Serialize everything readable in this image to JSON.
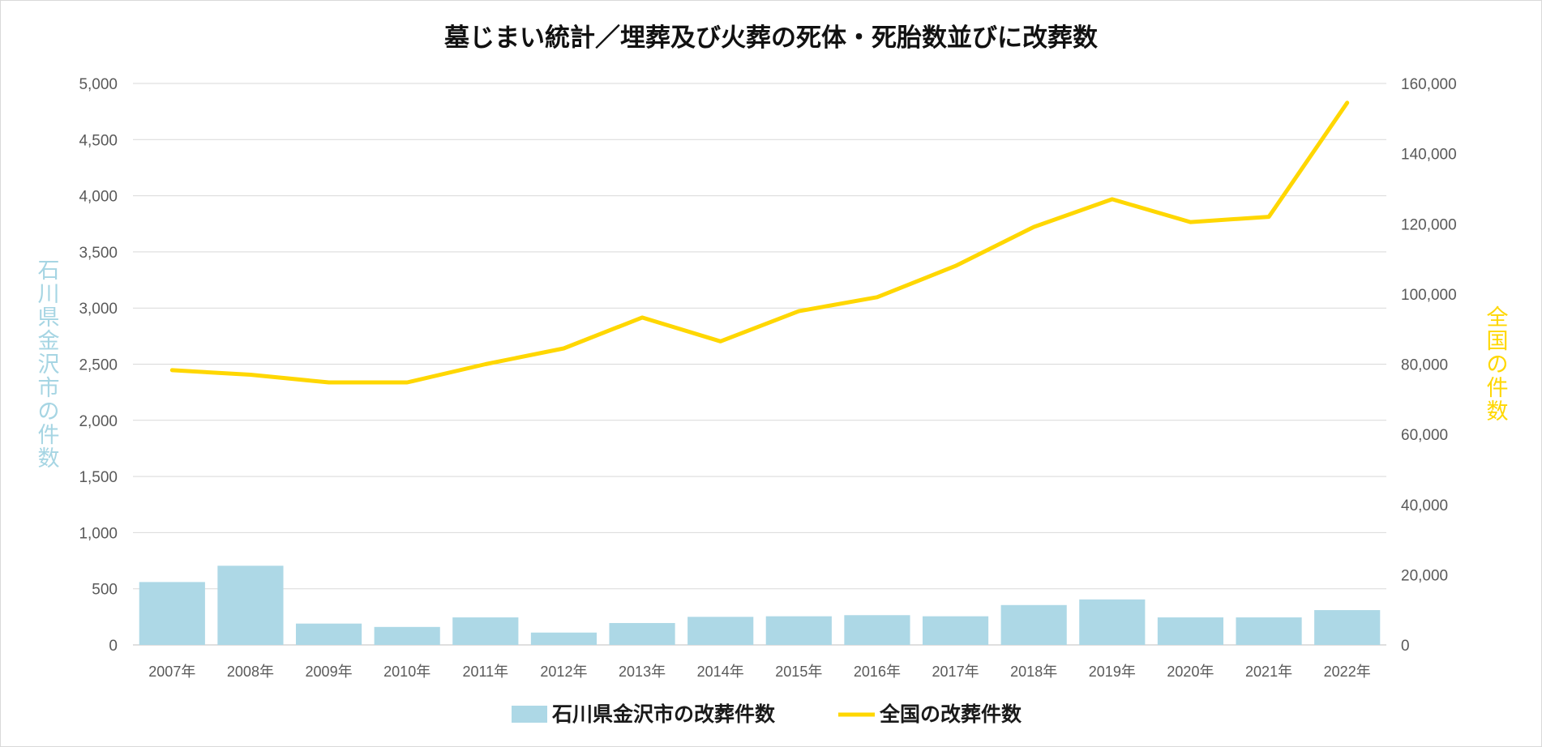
{
  "chart_data": {
    "type": "bar",
    "title": "墓じまい統計／埋葬及び火葬の死体・死胎数並びに改葬数",
    "categories": [
      "2007年",
      "2008年",
      "2009年",
      "2010年",
      "2011年",
      "2012年",
      "2013年",
      "2014年",
      "2015年",
      "2016年",
      "2017年",
      "2018年",
      "2019年",
      "2020年",
      "2021年",
      "2022年"
    ],
    "ylabel": "石川県金沢市の件数",
    "y2label": "全国の件数",
    "ylim": [
      0,
      5000
    ],
    "y2lim": [
      0,
      160000
    ],
    "yticks": [
      "0",
      "500",
      "1,000",
      "1,500",
      "2,000",
      "2,500",
      "3,000",
      "3,500",
      "4,000",
      "4,500",
      "5,000"
    ],
    "y2ticks": [
      "0",
      "20,000",
      "40,000",
      "60,000",
      "80,000",
      "100,000",
      "120,000",
      "140,000",
      "160,000"
    ],
    "grid": true,
    "legend_position": "bottom",
    "series": [
      {
        "name": "石川県金沢市の改葬件数",
        "type": "bar",
        "axis": "left",
        "color": "#add8e6",
        "values": [
          560,
          705,
          190,
          160,
          245,
          110,
          195,
          250,
          255,
          265,
          255,
          355,
          405,
          245,
          245,
          310
        ]
      },
      {
        "name": "全国の改葬件数",
        "type": "line",
        "axis": "right",
        "color": "#ffd700",
        "values": [
          78300,
          77000,
          74800,
          74800,
          80000,
          84500,
          93300,
          86500,
          95100,
          99100,
          108000,
          119100,
          127000,
          120500,
          122000,
          154500
        ]
      }
    ]
  }
}
